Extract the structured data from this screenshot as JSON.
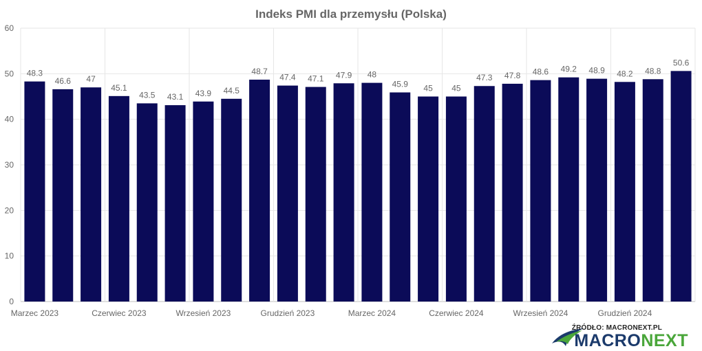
{
  "chart_data": {
    "type": "bar",
    "title": "Indeks PMI dla przemysłu (Polska)",
    "xlabel": "",
    "ylabel": "",
    "ylim": [
      0,
      60
    ],
    "yticks": [
      0,
      10,
      20,
      30,
      40,
      50,
      60
    ],
    "grid": true,
    "bar_color": "#0b0b58",
    "x_tick_labels": [
      {
        "index": 0,
        "label": "Marzec 2023"
      },
      {
        "index": 3,
        "label": "Czerwiec 2023"
      },
      {
        "index": 6,
        "label": "Wrzesień 2023"
      },
      {
        "index": 9,
        "label": "Grudzień 2023"
      },
      {
        "index": 12,
        "label": "Marzec 2024"
      },
      {
        "index": 15,
        "label": "Czerwiec 2024"
      },
      {
        "index": 18,
        "label": "Wrzesień 2024"
      },
      {
        "index": 21,
        "label": "Grudzień 2024"
      }
    ],
    "values": [
      48.3,
      46.6,
      47,
      45.1,
      43.5,
      43.1,
      43.9,
      44.5,
      48.7,
      47.4,
      47.1,
      47.9,
      48,
      45.9,
      45,
      45,
      47.3,
      47.8,
      48.6,
      49.2,
      48.9,
      48.2,
      48.8,
      50.6
    ]
  },
  "source": {
    "label": "ŹRÓDŁO: MACRONEXT.PL",
    "brand_part1": "MACRO",
    "brand_part2": "NEXT"
  }
}
